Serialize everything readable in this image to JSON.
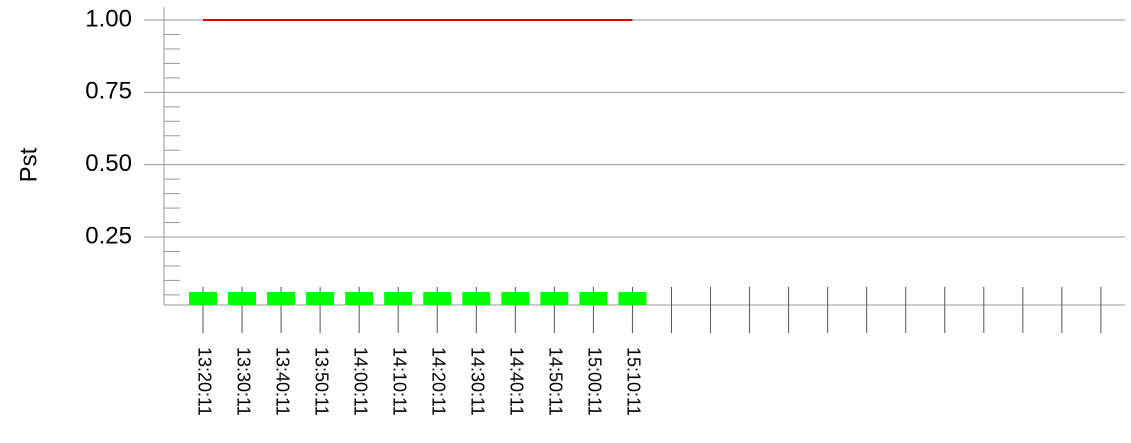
{
  "chart_data": {
    "type": "bar",
    "ylabel": "Pst",
    "categories": [
      "13:20:11",
      "13:30:11",
      "13:40:11",
      "13:50:11",
      "14:00:11",
      "14:10:11",
      "14:20:11",
      "14:30:11",
      "14:40:11",
      "14:50:11",
      "15:00:11",
      "15:10:11",
      null,
      null,
      null,
      null,
      null,
      null,
      null,
      null,
      null,
      null,
      null,
      null
    ],
    "series": [
      {
        "type": "bar",
        "color": "#00ff00",
        "values": [
          0.06,
          0.06,
          0.06,
          0.06,
          0.06,
          0.06,
          0.06,
          0.06,
          0.06,
          0.06,
          0.06,
          0.06,
          null,
          null,
          null,
          null,
          null,
          null,
          null,
          null,
          null,
          null,
          null,
          null
        ]
      },
      {
        "type": "line",
        "color": "#e00000",
        "values": [
          1,
          1,
          1,
          1,
          1,
          1,
          1,
          1,
          1,
          1,
          1,
          1,
          null,
          null,
          null,
          null,
          null,
          null,
          null,
          null,
          null,
          null,
          null,
          null
        ]
      }
    ],
    "ylim": [
      0.015,
      1.045
    ],
    "yticks": [
      {
        "value": 0.25,
        "label": "0.25"
      },
      {
        "value": 0.5,
        "label": "0.50"
      },
      {
        "value": 0.75,
        "label": "0.75"
      },
      {
        "value": 1,
        "label": "1.00"
      }
    ],
    "yminorticks": [
      0.05,
      0.1,
      0.15,
      0.2,
      0.3,
      0.35,
      0.4,
      0.45,
      0.55,
      0.6,
      0.65,
      0.7,
      0.8,
      0.85,
      0.9,
      0.95
    ],
    "grid": true
  }
}
